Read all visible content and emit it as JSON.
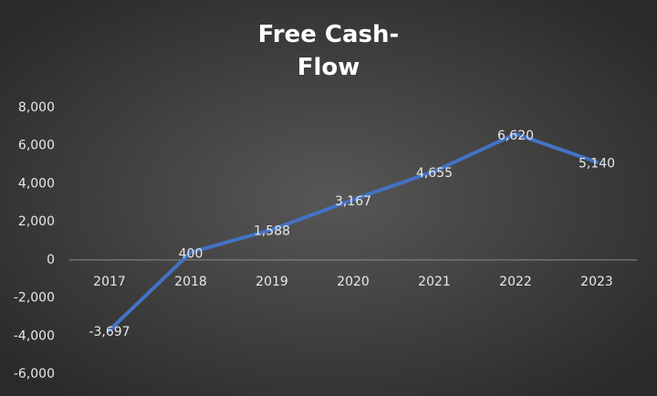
{
  "chart_data": {
    "type": "line",
    "title": "Free Cash-Flow",
    "categories": [
      "2017",
      "2018",
      "2019",
      "2020",
      "2021",
      "2022",
      "2023"
    ],
    "values": [
      -3697,
      400,
      1588,
      3167,
      4655,
      6620,
      5140
    ],
    "value_labels": [
      "-3,697",
      "400",
      "1,588",
      "3,167",
      "4,655",
      "6,620",
      "5,140"
    ],
    "color": "#4472c4",
    "ylim": [
      -6000,
      8000
    ],
    "yticks": [
      {
        "value": -6000,
        "label": "-6,000"
      },
      {
        "value": -4000,
        "label": "-4,000"
      },
      {
        "value": -2000,
        "label": "-2,000"
      },
      0,
      {
        "value": 2000,
        "label": "2,000"
      },
      {
        "value": 4000,
        "label": "4,000"
      },
      {
        "value": 6000,
        "label": "6,000"
      },
      {
        "value": 8000,
        "label": "8,000"
      }
    ],
    "grid": false
  }
}
